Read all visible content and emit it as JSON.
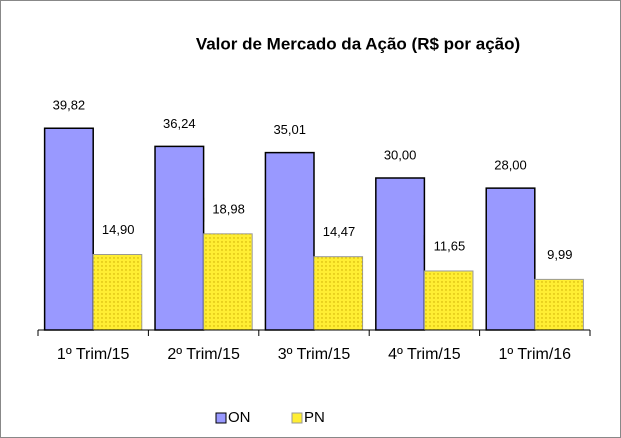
{
  "chart_data": {
    "type": "bar",
    "title": "Valor de Mercado da Ação (R$ por ação)",
    "categories": [
      "1º Trim/15",
      "2º Trim/15",
      "3º Trim/15",
      "4º Trim/15",
      "1º Trim/16"
    ],
    "series": [
      {
        "name": "ON",
        "color": "#9999ff",
        "values": [
          39.82,
          36.24,
          35.01,
          30.0,
          28.0
        ],
        "value_labels": [
          "39,82",
          "36,24",
          "35,01",
          "30,00",
          "28,00"
        ]
      },
      {
        "name": "PN",
        "color": "#ffee33",
        "values": [
          14.9,
          18.98,
          14.47,
          11.65,
          9.99
        ],
        "value_labels": [
          "14,90",
          "18,98",
          "14,47",
          "11,65",
          "9,99"
        ]
      }
    ],
    "ylim": [
      0,
      45
    ],
    "legend": "bottom"
  }
}
